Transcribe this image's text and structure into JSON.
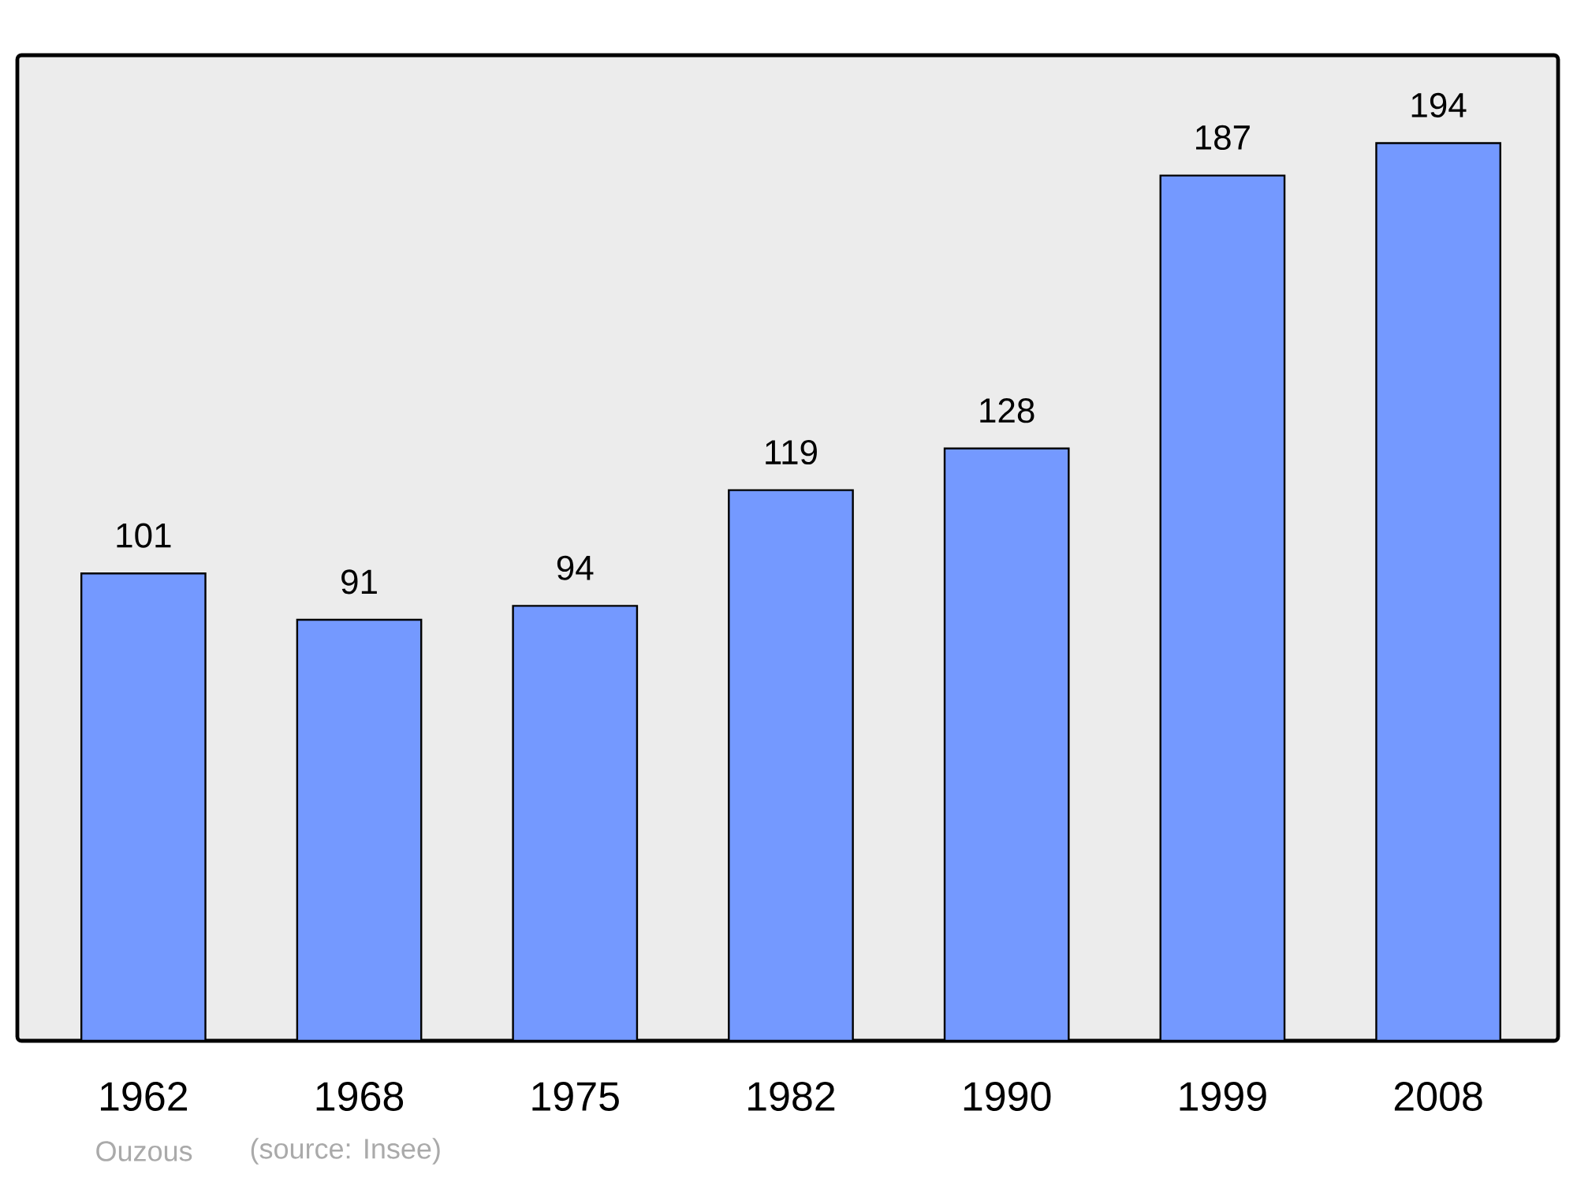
{
  "chart_data": {
    "type": "bar",
    "categories": [
      "1962",
      "1968",
      "1975",
      "1982",
      "1990",
      "1999",
      "2008"
    ],
    "values": [
      101,
      91,
      94,
      119,
      128,
      187,
      194
    ],
    "color": "#7499ff",
    "data_labels": true,
    "ylim": [
      0,
      213
    ],
    "annotations": [
      "Ouzous",
      "(source: Insee)"
    ]
  }
}
